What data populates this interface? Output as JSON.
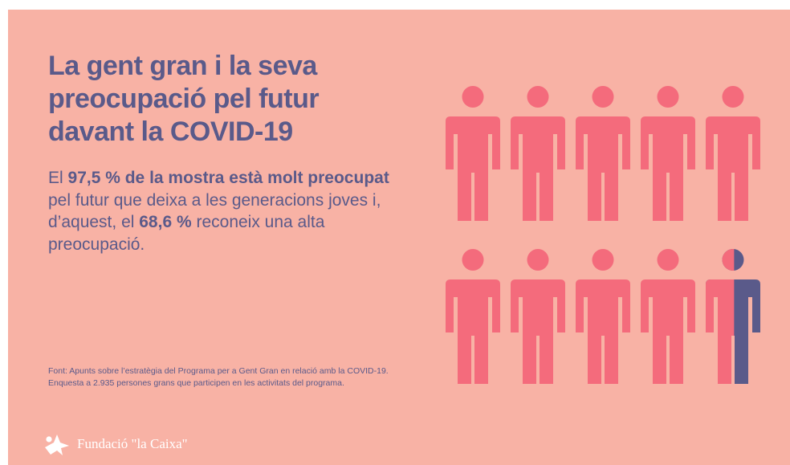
{
  "title_lines": [
    "La gent gran i la seva",
    "preocupació pel futur",
    "davant la COVID-19"
  ],
  "description": {
    "p1": "El ",
    "b1": "97,5 % de la mostra està molt preocupat",
    "p2": " pel futur que deixa a les generacions joves i, d’aquest, el ",
    "b2": "68,6 %",
    "p3": " reconeix una alta preocupació."
  },
  "source": "Font: Apunts sobre l’estratègia del Programa per a Gent Gran en relació amb la COVID-19. Enquesta a 2.935 persones grans que participen en les activitats del programa.",
  "brand": "Fundació \"la Caixa\"",
  "chart_data": {
    "type": "pictogram",
    "icons_total": 10,
    "rows": 2,
    "cols": 5,
    "value_percent": 97.5,
    "highlight_color": "#f46b7c",
    "remainder_color": "#5a5a8a"
  },
  "colors": {
    "background": "#f8b2a5",
    "text": "#5a5a8a",
    "logo": "#ffffff"
  }
}
